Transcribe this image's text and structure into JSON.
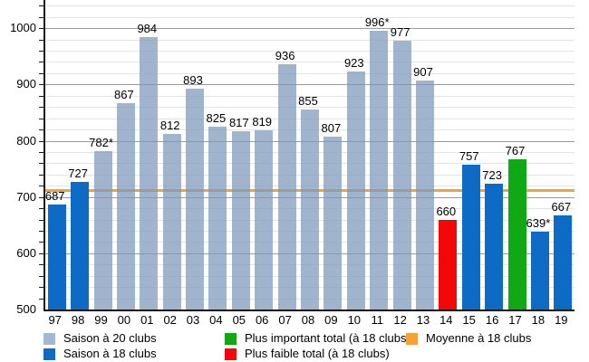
{
  "chart_data": {
    "type": "bar",
    "title": "",
    "ylim": [
      500,
      1050
    ],
    "plot_bottom_value": 500,
    "yticks_major": [
      500,
      600,
      700,
      800,
      900,
      1000
    ],
    "ytick_minor_step": 20,
    "grid": "on",
    "legend_position": "bottom",
    "categories": [
      "97",
      "98",
      "99",
      "00",
      "01",
      "02",
      "03",
      "04",
      "05",
      "06",
      "07",
      "08",
      "09",
      "10",
      "11",
      "12",
      "13",
      "14",
      "15",
      "16",
      "17",
      "18",
      "19"
    ],
    "bars": [
      {
        "x": "97",
        "value": 687,
        "label": "687",
        "type": "season18"
      },
      {
        "x": "98",
        "value": 727,
        "label": "727",
        "type": "season18"
      },
      {
        "x": "99",
        "value": 782,
        "label": "782*",
        "type": "season20"
      },
      {
        "x": "00",
        "value": 867,
        "label": "867",
        "type": "season20"
      },
      {
        "x": "01",
        "value": 984,
        "label": "984",
        "type": "season20"
      },
      {
        "x": "02",
        "value": 812,
        "label": "812",
        "type": "season20"
      },
      {
        "x": "03",
        "value": 893,
        "label": "893",
        "type": "season20"
      },
      {
        "x": "04",
        "value": 825,
        "label": "825",
        "type": "season20"
      },
      {
        "x": "05",
        "value": 817,
        "label": "817",
        "type": "season20"
      },
      {
        "x": "06",
        "value": 819,
        "label": "819",
        "type": "season20"
      },
      {
        "x": "07",
        "value": 936,
        "label": "936",
        "type": "season20"
      },
      {
        "x": "08",
        "value": 855,
        "label": "855",
        "type": "season20"
      },
      {
        "x": "09",
        "value": 807,
        "label": "807",
        "type": "season20"
      },
      {
        "x": "10",
        "value": 923,
        "label": "923",
        "type": "season20"
      },
      {
        "x": "11",
        "value": 996,
        "label": "996*",
        "type": "season20"
      },
      {
        "x": "12",
        "value": 977,
        "label": "977",
        "type": "season20"
      },
      {
        "x": "13",
        "value": 907,
        "label": "907",
        "type": "season20"
      },
      {
        "x": "14",
        "value": 660,
        "label": "660",
        "type": "lowest18"
      },
      {
        "x": "15",
        "value": 757,
        "label": "757",
        "type": "season18"
      },
      {
        "x": "16",
        "value": 723,
        "label": "723",
        "type": "season18"
      },
      {
        "x": "17",
        "value": 767,
        "label": "767",
        "type": "highest18"
      },
      {
        "x": "18",
        "value": 639,
        "label": "639*",
        "type": "season18"
      },
      {
        "x": "19",
        "value": 667,
        "label": "667",
        "type": "season18"
      }
    ],
    "average_line": {
      "value": 711,
      "label": "Moyenne à 18 clubs"
    }
  },
  "colors": {
    "season20": "rgba(124,152,186,0.72)",
    "season20_solid": "#a3b9d1",
    "season18": "#0d6bc5",
    "highest18": "#11a815",
    "lowest18": "#f40708",
    "average": "#f4a136",
    "grid_major": "#9b9b9b",
    "grid_minor": "#e4e4e4",
    "axis": "#1a1a1a"
  },
  "legend": {
    "items": [
      {
        "label": "Saison à 20 clubs",
        "color": "#a3b9d1",
        "swatch": "season20-swatch"
      },
      {
        "label": "Saison à 18 clubs",
        "color": "#0d6bc5",
        "swatch": "season18-swatch"
      },
      {
        "label": "Plus important total (à 18 clubs)",
        "color": "#11a815",
        "swatch": "highest-total-swatch"
      },
      {
        "label": "Plus faible total (à 18 clubs)",
        "color": "#f40708",
        "swatch": "lowest-total-swatch"
      },
      {
        "label": "Moyenne à 18 clubs",
        "color": "#f4a136",
        "swatch": "average-swatch"
      }
    ]
  }
}
